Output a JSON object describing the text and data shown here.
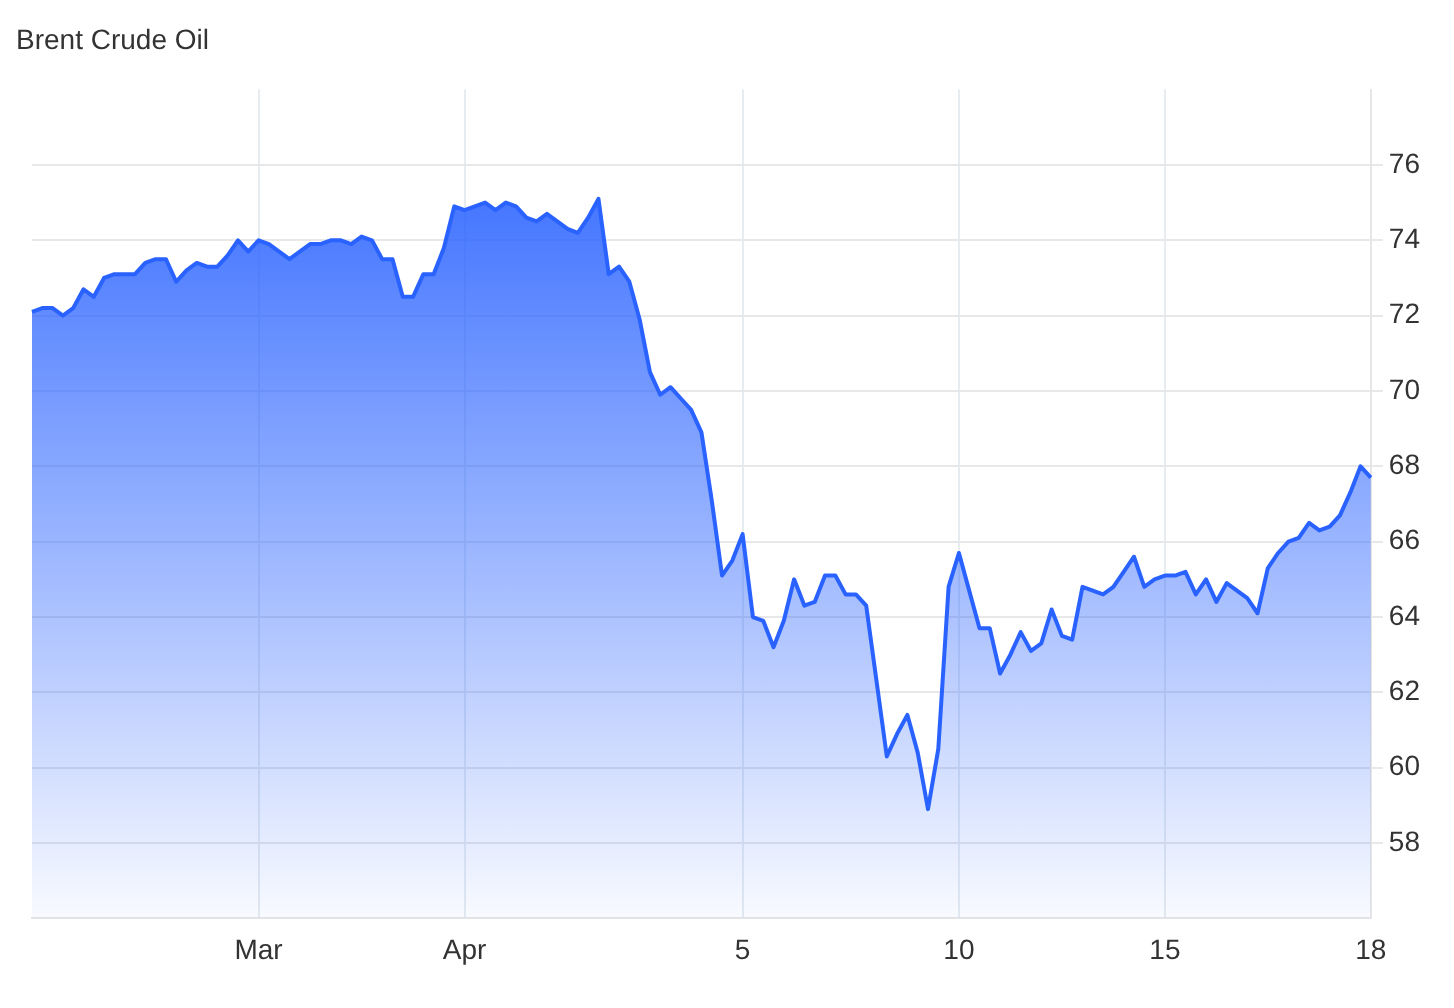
{
  "chart_data": {
    "type": "area",
    "title": "Brent Crude Oil",
    "categories": [
      null,
      null,
      null,
      null,
      null,
      null,
      null,
      null,
      null,
      null,
      null,
      null,
      null,
      null,
      null,
      null,
      null,
      null,
      null,
      null,
      null,
      null,
      "Mar",
      null,
      null,
      null,
      null,
      null,
      null,
      null,
      null,
      null,
      null,
      null,
      null,
      null,
      null,
      null,
      null,
      null,
      null,
      null,
      "Apr",
      null,
      null,
      null,
      null,
      null,
      null,
      null,
      null,
      null,
      null,
      null,
      null,
      null,
      null,
      null,
      null,
      null,
      null,
      null,
      null,
      null,
      null,
      null,
      null,
      null,
      null,
      "5",
      null,
      null,
      null,
      null,
      null,
      null,
      null,
      null,
      null,
      null,
      null,
      null,
      null,
      null,
      null,
      null,
      null,
      null,
      null,
      null,
      "10",
      null,
      null,
      null,
      null,
      null,
      null,
      null,
      null,
      null,
      null,
      null,
      null,
      null,
      null,
      null,
      null,
      null,
      null,
      null,
      "15",
      null,
      null,
      null,
      null,
      null,
      null,
      null,
      null,
      null,
      null,
      null,
      null,
      null,
      null,
      null,
      null,
      null,
      null,
      null,
      "18"
    ],
    "series": [
      {
        "color": "#2962ff",
        "values": [
          72.1,
          72.2,
          72.2,
          72.0,
          72.2,
          72.7,
          72.5,
          73.0,
          73.1,
          73.1,
          73.1,
          73.4,
          73.5,
          73.5,
          72.9,
          73.2,
          73.4,
          73.3,
          73.3,
          73.6,
          74.0,
          73.7,
          74.0,
          73.9,
          73.7,
          73.5,
          73.7,
          73.9,
          73.9,
          74.0,
          74.0,
          73.9,
          74.1,
          74.0,
          73.5,
          73.5,
          72.5,
          72.5,
          73.1,
          73.1,
          73.8,
          74.9,
          74.8,
          74.9,
          75.0,
          74.8,
          75.0,
          74.9,
          74.6,
          74.5,
          74.7,
          74.5,
          74.3,
          74.2,
          74.6,
          75.1,
          73.1,
          73.3,
          72.9,
          71.9,
          70.5,
          69.9,
          70.1,
          69.8,
          69.5,
          68.9,
          67.1,
          65.1,
          65.5,
          66.2,
          64.0,
          63.9,
          63.2,
          63.9,
          65.0,
          64.3,
          64.4,
          65.1,
          65.1,
          64.6,
          64.6,
          64.3,
          62.3,
          60.3,
          60.9,
          61.4,
          60.4,
          58.9,
          60.5,
          64.8,
          65.7,
          64.7,
          63.7,
          63.7,
          62.5,
          63.0,
          63.6,
          63.1,
          63.3,
          64.2,
          63.5,
          63.4,
          64.8,
          64.7,
          64.6,
          64.8,
          65.2,
          65.6,
          64.8,
          65.0,
          65.1,
          65.1,
          65.2,
          64.6,
          65.0,
          64.4,
          64.9,
          64.7,
          64.5,
          64.1,
          65.3,
          65.7,
          66.0,
          66.1,
          66.5,
          66.3,
          66.4,
          66.7,
          67.3,
          68.0,
          67.7
        ]
      }
    ],
    "ylim": [
      56,
      78
    ],
    "yticks": [
      58,
      60,
      62,
      64,
      66,
      68,
      70,
      72,
      74,
      76
    ],
    "grid": true,
    "legend": false
  }
}
